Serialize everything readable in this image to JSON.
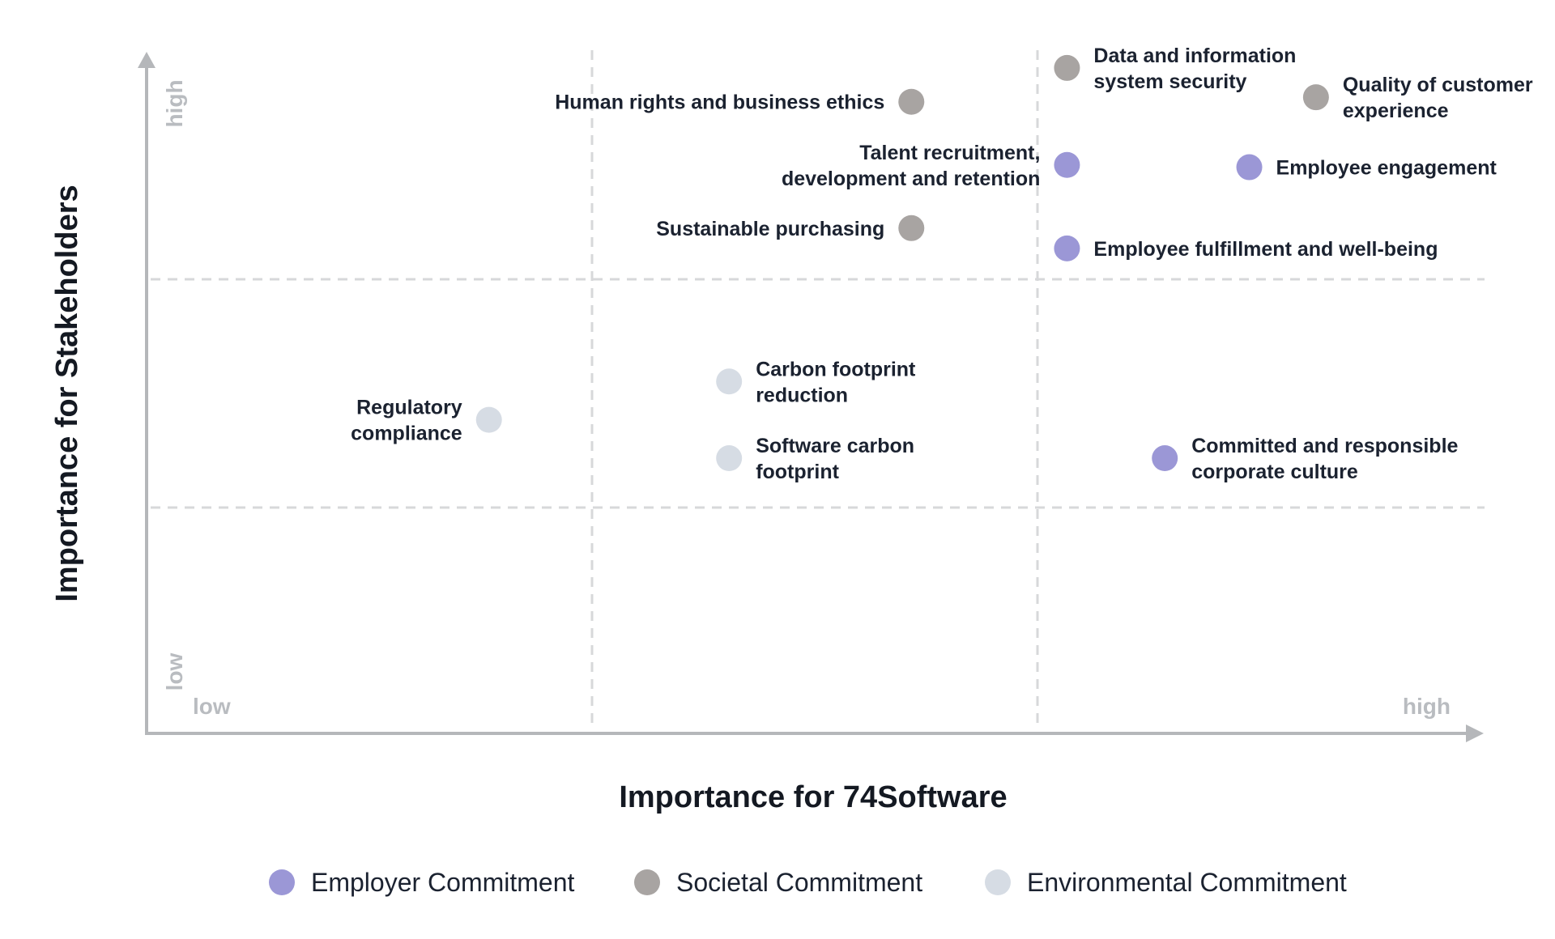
{
  "chart_data": {
    "type": "scatter",
    "title": "",
    "xlabel": "Importance for 74Software",
    "ylabel": "Importance for Stakeholders",
    "x_low_label": "low",
    "x_high_label": "high",
    "y_low_label": "low",
    "y_high_label": "high",
    "xlim": [
      0,
      3
    ],
    "ylim": [
      0,
      3
    ],
    "grid": "dashed 3x3",
    "legend_position": "bottom",
    "colors": {
      "employer": "#9b97d6",
      "societal": "#a8a4a2",
      "environmental": "#d6dce4"
    },
    "series": [
      {
        "key": "employer",
        "name": "Employer Commitment"
      },
      {
        "key": "societal",
        "name": "Societal Commitment"
      },
      {
        "key": "environmental",
        "name": "Environmental Commitment"
      }
    ],
    "points": [
      {
        "label": [
          "Human rights and business ethics"
        ],
        "series": "societal",
        "x": 1.72,
        "y": 2.8,
        "anchor": "left"
      },
      {
        "label": [
          "Data and information",
          "system security"
        ],
        "series": "societal",
        "x": 2.07,
        "y": 2.95,
        "anchor": "right"
      },
      {
        "label": [
          "Quality of customer",
          "experience"
        ],
        "series": "societal",
        "x": 2.63,
        "y": 2.82,
        "anchor": "right"
      },
      {
        "label": [
          "Talent recruitment,",
          "development and retention"
        ],
        "series": "employer",
        "x": 2.07,
        "y": 2.52,
        "anchor": "left"
      },
      {
        "label": [
          "Employee engagement"
        ],
        "series": "employer",
        "x": 2.48,
        "y": 2.51,
        "anchor": "right"
      },
      {
        "label": [
          "Sustainable purchasing"
        ],
        "series": "societal",
        "x": 1.72,
        "y": 2.24,
        "anchor": "left"
      },
      {
        "label": [
          "Employee fulfillment and well-being"
        ],
        "series": "employer",
        "x": 2.07,
        "y": 2.15,
        "anchor": "right"
      },
      {
        "label": [
          "Carbon footprint",
          "reduction"
        ],
        "series": "environmental",
        "x": 1.31,
        "y": 1.56,
        "anchor": "right"
      },
      {
        "label": [
          "Regulatory",
          "compliance"
        ],
        "series": "environmental",
        "x": 0.77,
        "y": 1.39,
        "anchor": "left"
      },
      {
        "label": [
          "Software carbon",
          "footprint"
        ],
        "series": "environmental",
        "x": 1.31,
        "y": 1.22,
        "anchor": "right"
      },
      {
        "label": [
          "Committed and responsible",
          "corporate culture"
        ],
        "series": "employer",
        "x": 2.29,
        "y": 1.22,
        "anchor": "right"
      }
    ]
  }
}
